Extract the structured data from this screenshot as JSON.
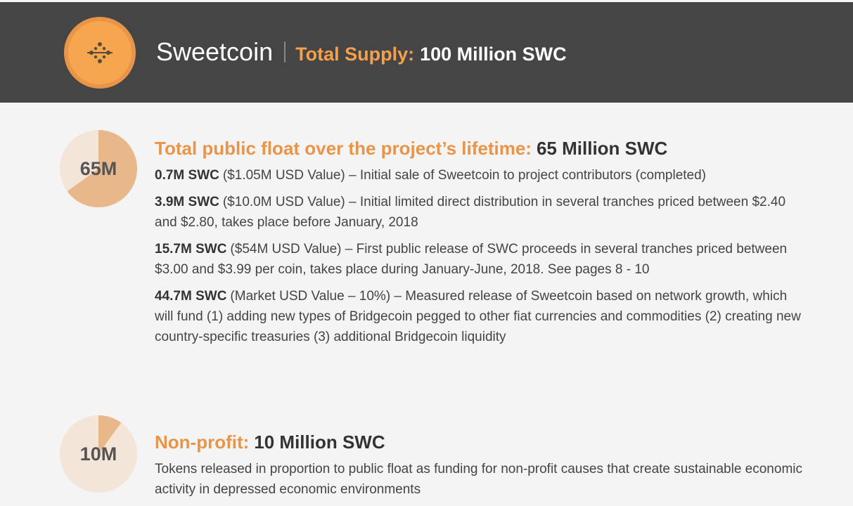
{
  "header": {
    "title": "Sweetcoin",
    "supply_label": "Total Supply:",
    "supply": {
      "value": 100,
      "label": "100 Million SWC"
    }
  },
  "sections": [
    {
      "badge": {
        "value": 65,
        "label": "65M"
      },
      "heading_label": "Total public float over the project’s lifetime:",
      "heading_value": "65 Million SWC",
      "items": [
        {
          "lead": "0.7M SWC",
          "text": "($1.05M USD Value) – Initial sale of Sweetcoin to project contributors (completed)"
        },
        {
          "lead": "3.9M SWC",
          "text": "($10.0M USD Value) – Initial limited direct distribution in several tranches priced between $2.40 and $2.80, takes place before January, 2018"
        },
        {
          "lead": "15.7M SWC",
          "text": "($54M USD Value) – First public release of SWC proceeds in several tranches priced between $3.00 and $3.99 per coin, takes place during January-June, 2018. See pages 8 - 10"
        },
        {
          "lead": "44.7M SWC",
          "text": "(Market USD Value – 10%) – Measured release of Sweetcoin based on network growth, which will fund (1) adding new types of Bridgecoin pegged to other fiat currencies and commodities (2) creating new country-specific treasuries (3) additional Bridgecoin liquidity"
        }
      ]
    },
    {
      "badge": {
        "value": 10,
        "label": "10M"
      },
      "heading_label": "Non-profit:",
      "heading_value": "10 Million SWC",
      "items": [
        {
          "text": "Tokens released in proportion to public float as funding for non-profit causes that create sustainable economic activity in depressed economic environments"
        }
      ]
    }
  ]
}
